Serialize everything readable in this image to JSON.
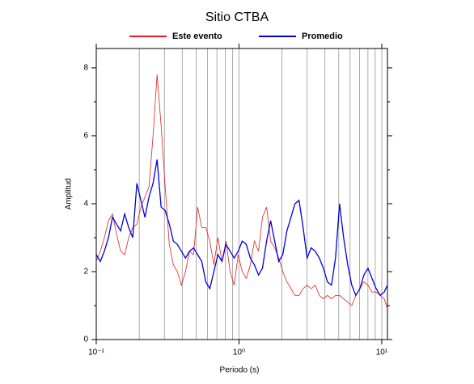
{
  "chart_data": {
    "type": "line",
    "title": "Sitio CTBA",
    "xlabel": "Periodo (s)",
    "ylabel": "Amplitud",
    "xscale": "log",
    "legend": "top",
    "xlim": [
      0.1,
      10.96
    ],
    "ylim": [
      0,
      8.57
    ],
    "xticks": [
      {
        "value": 0.1,
        "label": "10⁻¹"
      },
      {
        "value": 1,
        "label": "10⁰"
      },
      {
        "value": 10,
        "label": "10¹"
      }
    ],
    "xminor_ticks": [
      0.2,
      0.3,
      0.4,
      0.5,
      0.6,
      0.7,
      0.8,
      0.9,
      2,
      3,
      4,
      5,
      6,
      7,
      8,
      9
    ],
    "yticks": [
      0,
      2,
      4,
      6,
      8
    ],
    "yminor_ticks": [
      1,
      3,
      5,
      7
    ],
    "x": [
      0.1,
      0.1067,
      0.114,
      0.1217,
      0.1299,
      0.1387,
      0.1481,
      0.1581,
      0.1688,
      0.1802,
      0.1924,
      0.2054,
      0.2193,
      0.2341,
      0.2499,
      0.2668,
      0.2848,
      0.3041,
      0.3247,
      0.3466,
      0.37,
      0.395,
      0.4217,
      0.4502,
      0.4806,
      0.5131,
      0.5478,
      0.5848,
      0.6244,
      0.6666,
      0.7116,
      0.7597,
      0.8111,
      0.8659,
      0.9244,
      0.987,
      1.054,
      1.125,
      1.201,
      1.282,
      1.369,
      1.461,
      1.56,
      1.666,
      1.778,
      1.898,
      2.027,
      2.164,
      2.31,
      2.466,
      2.633,
      2.811,
      3.001,
      3.204,
      3.42,
      3.652,
      3.899,
      4.162,
      4.444,
      4.744,
      5.065,
      5.407,
      5.773,
      6.163,
      6.579,
      7.024,
      7.499,
      8.006,
      8.547,
      9.125,
      9.741,
      10.4,
      10.96
    ],
    "series": [
      {
        "name": "Este evento",
        "color": "#e02020",
        "values": [
          2.3,
          2.6,
          3.0,
          3.5,
          3.7,
          3.1,
          2.6,
          2.5,
          3.0,
          3.3,
          3.4,
          3.9,
          4.2,
          4.5,
          6.0,
          7.8,
          6.3,
          4.5,
          2.8,
          2.2,
          2.0,
          1.6,
          2.0,
          2.6,
          2.5,
          3.9,
          3.3,
          3.3,
          2.9,
          2.2,
          3.0,
          2.3,
          2.9,
          2.0,
          1.6,
          2.5,
          2.0,
          1.8,
          2.2,
          2.9,
          2.6,
          3.6,
          3.9,
          2.9,
          2.7,
          2.4,
          2.0,
          1.7,
          1.5,
          1.3,
          1.3,
          1.5,
          1.6,
          1.5,
          1.6,
          1.3,
          1.2,
          1.3,
          1.2,
          1.3,
          1.3,
          1.2,
          1.1,
          1.0,
          1.3,
          1.5,
          1.7,
          1.6,
          1.4,
          1.4,
          1.3,
          1.2,
          0.9
        ]
      },
      {
        "name": "Promedio",
        "color": "#0000dd",
        "values": [
          2.5,
          2.3,
          2.6,
          3.0,
          3.6,
          3.4,
          3.2,
          3.7,
          3.3,
          3.0,
          4.6,
          4.1,
          3.6,
          4.2,
          4.6,
          5.3,
          3.9,
          3.8,
          3.4,
          2.9,
          2.8,
          2.6,
          2.4,
          2.6,
          2.7,
          2.5,
          2.3,
          1.7,
          1.5,
          2.0,
          2.5,
          2.3,
          2.8,
          2.6,
          2.4,
          2.6,
          2.9,
          2.8,
          2.4,
          2.2,
          1.9,
          2.1,
          2.9,
          3.5,
          2.9,
          2.3,
          2.5,
          3.2,
          3.6,
          4.0,
          4.1,
          3.3,
          2.4,
          2.7,
          2.6,
          2.4,
          2.1,
          1.7,
          1.6,
          2.4,
          4.0,
          3.0,
          2.2,
          1.6,
          1.3,
          1.5,
          1.9,
          2.1,
          1.8,
          1.5,
          1.3,
          1.4,
          1.6
        ]
      }
    ]
  }
}
